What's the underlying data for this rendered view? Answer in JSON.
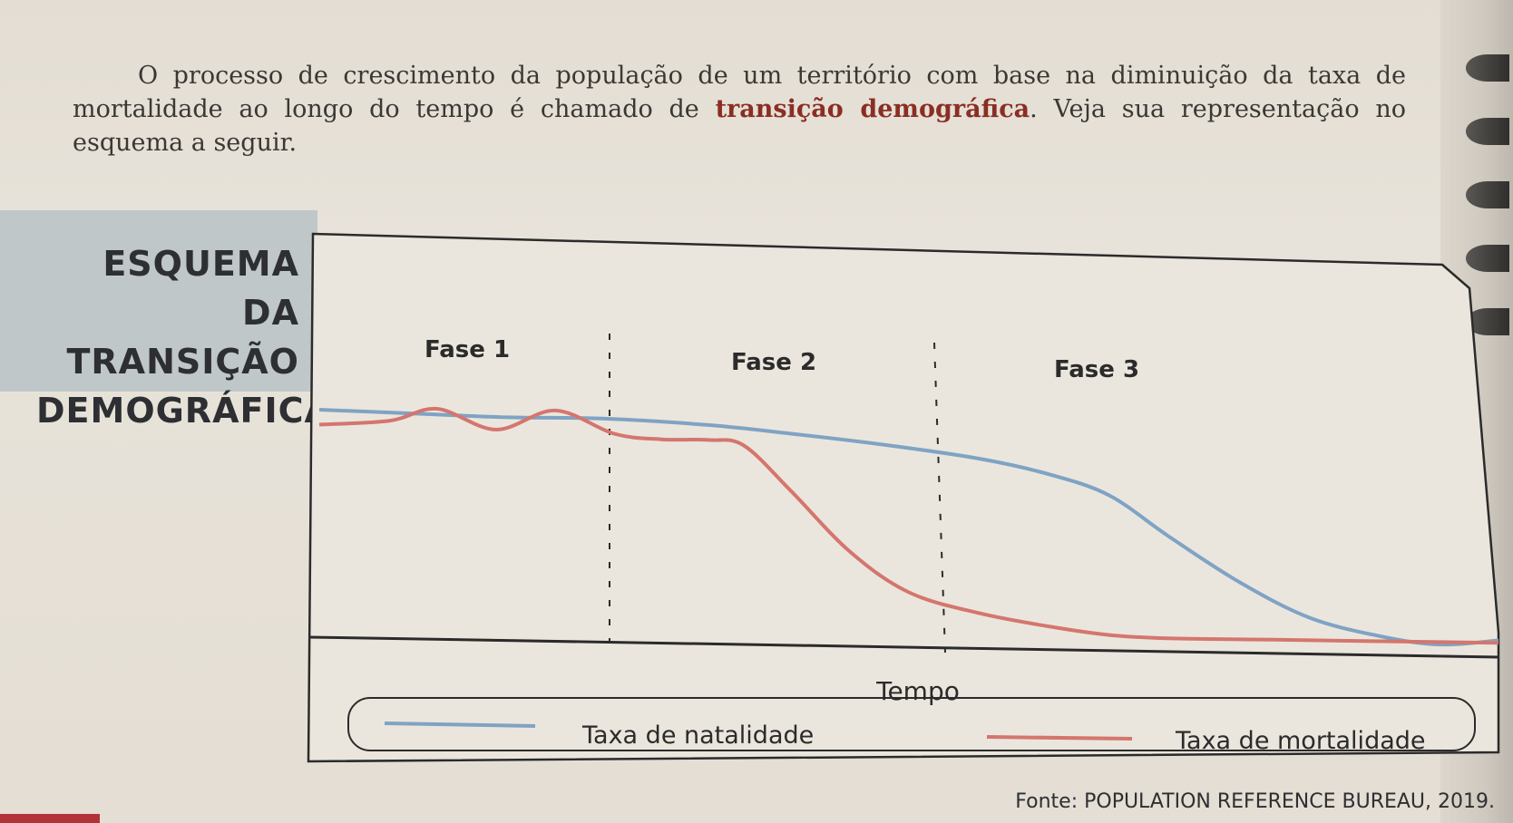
{
  "intro": {
    "text_before": "O processo de crescimento da população de um território com base na diminuição da taxa de mortalidade ao longo do tempo é chamado de ",
    "highlight": "transição demográfica",
    "text_after": ". Veja sua representação no esquema a seguir."
  },
  "side_title": {
    "line1": "ESQUEMA DA",
    "line2": "TRANSIÇÃO",
    "line3": "DEMOGRÁFICA"
  },
  "chart_data": {
    "type": "line",
    "xlabel": "Tempo",
    "ylabel": "",
    "phases": [
      "Fase 1",
      "Fase 2",
      "Fase 3"
    ],
    "phase_boundaries": [
      33.3,
      66.7
    ],
    "xlim": [
      0,
      100
    ],
    "ylim": [
      0,
      100
    ],
    "grid": false,
    "legend_position": "bottom",
    "series": [
      {
        "name": "Taxa de natalidade",
        "color": "#7fa3c4",
        "x": [
          0,
          8,
          16,
          24,
          33,
          40,
          48,
          56,
          62,
          67,
          72,
          78,
          84,
          90,
          95,
          100
        ],
        "y": [
          92,
          91,
          90,
          90,
          88,
          85,
          81,
          76,
          70,
          62,
          46,
          28,
          14,
          7,
          4,
          6
        ]
      },
      {
        "name": "Taxa de mortalidade",
        "color": "#d4766e",
        "x": [
          0,
          6,
          10,
          15,
          20,
          25,
          29,
          33,
          36,
          40,
          45,
          50,
          56,
          62,
          67,
          72,
          80,
          90,
          100
        ],
        "y": [
          86,
          88,
          93,
          85,
          93,
          84,
          82,
          82,
          80,
          62,
          38,
          22,
          14,
          9,
          6,
          5,
          5,
          5,
          5
        ]
      }
    ]
  },
  "legend": {
    "natalidade": "Taxa de natalidade",
    "mortalidade": "Taxa de mortalidade"
  },
  "source": "Fonte: POPULATION REFERENCE BUREAU, 2019."
}
